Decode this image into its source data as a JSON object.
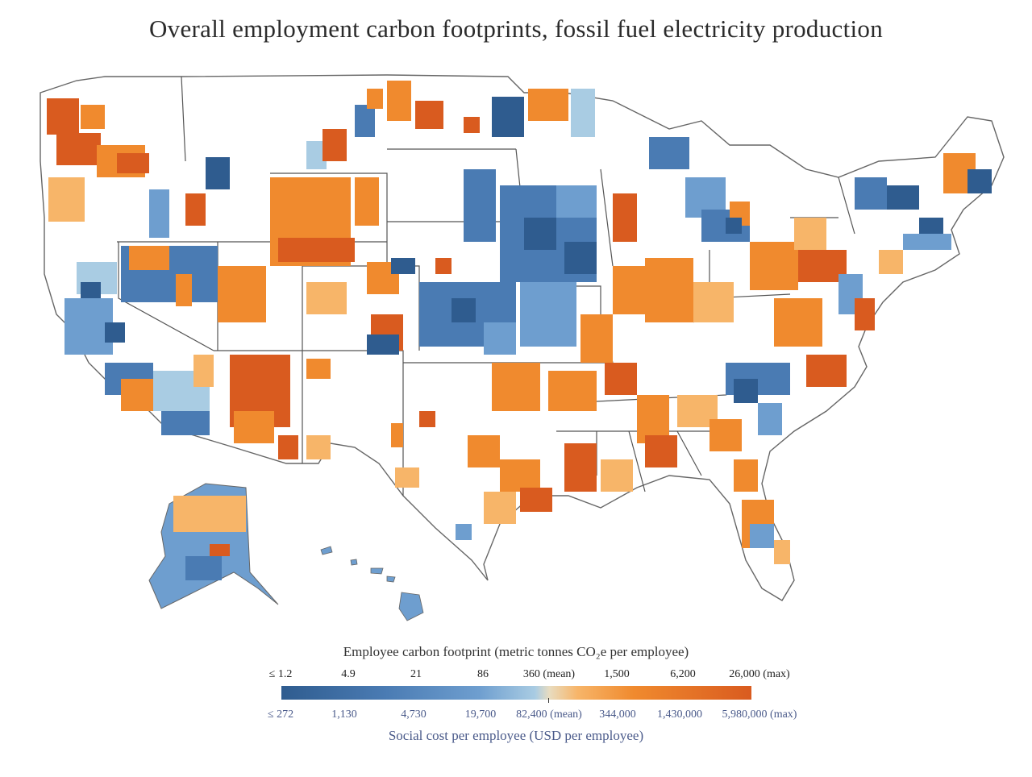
{
  "title": "Overall employment carbon footprints, fossil fuel electricity production",
  "legend": {
    "top_title": "Employee carbon footprint (metric tonnes CO₂e per employee)",
    "top_ticks": [
      "≤ 1.2",
      "4.9",
      "21",
      "86",
      "360 (mean)",
      "1,500",
      "6,200",
      "26,000 (max)"
    ],
    "bottom_ticks": [
      "≤ 272",
      "1,130",
      "4,730",
      "19,700",
      "82,400 (mean)",
      "344,000",
      "1,430,000",
      "5,980,000 (max)"
    ],
    "bottom_title": "Social cost per employee (USD per employee)",
    "colors": [
      "#2f5c8f",
      "#4a7bb3",
      "#6e9ecf",
      "#a9cce3",
      "#e8dcc0",
      "#f7b569",
      "#f08a2e",
      "#d95b1f"
    ]
  }
}
